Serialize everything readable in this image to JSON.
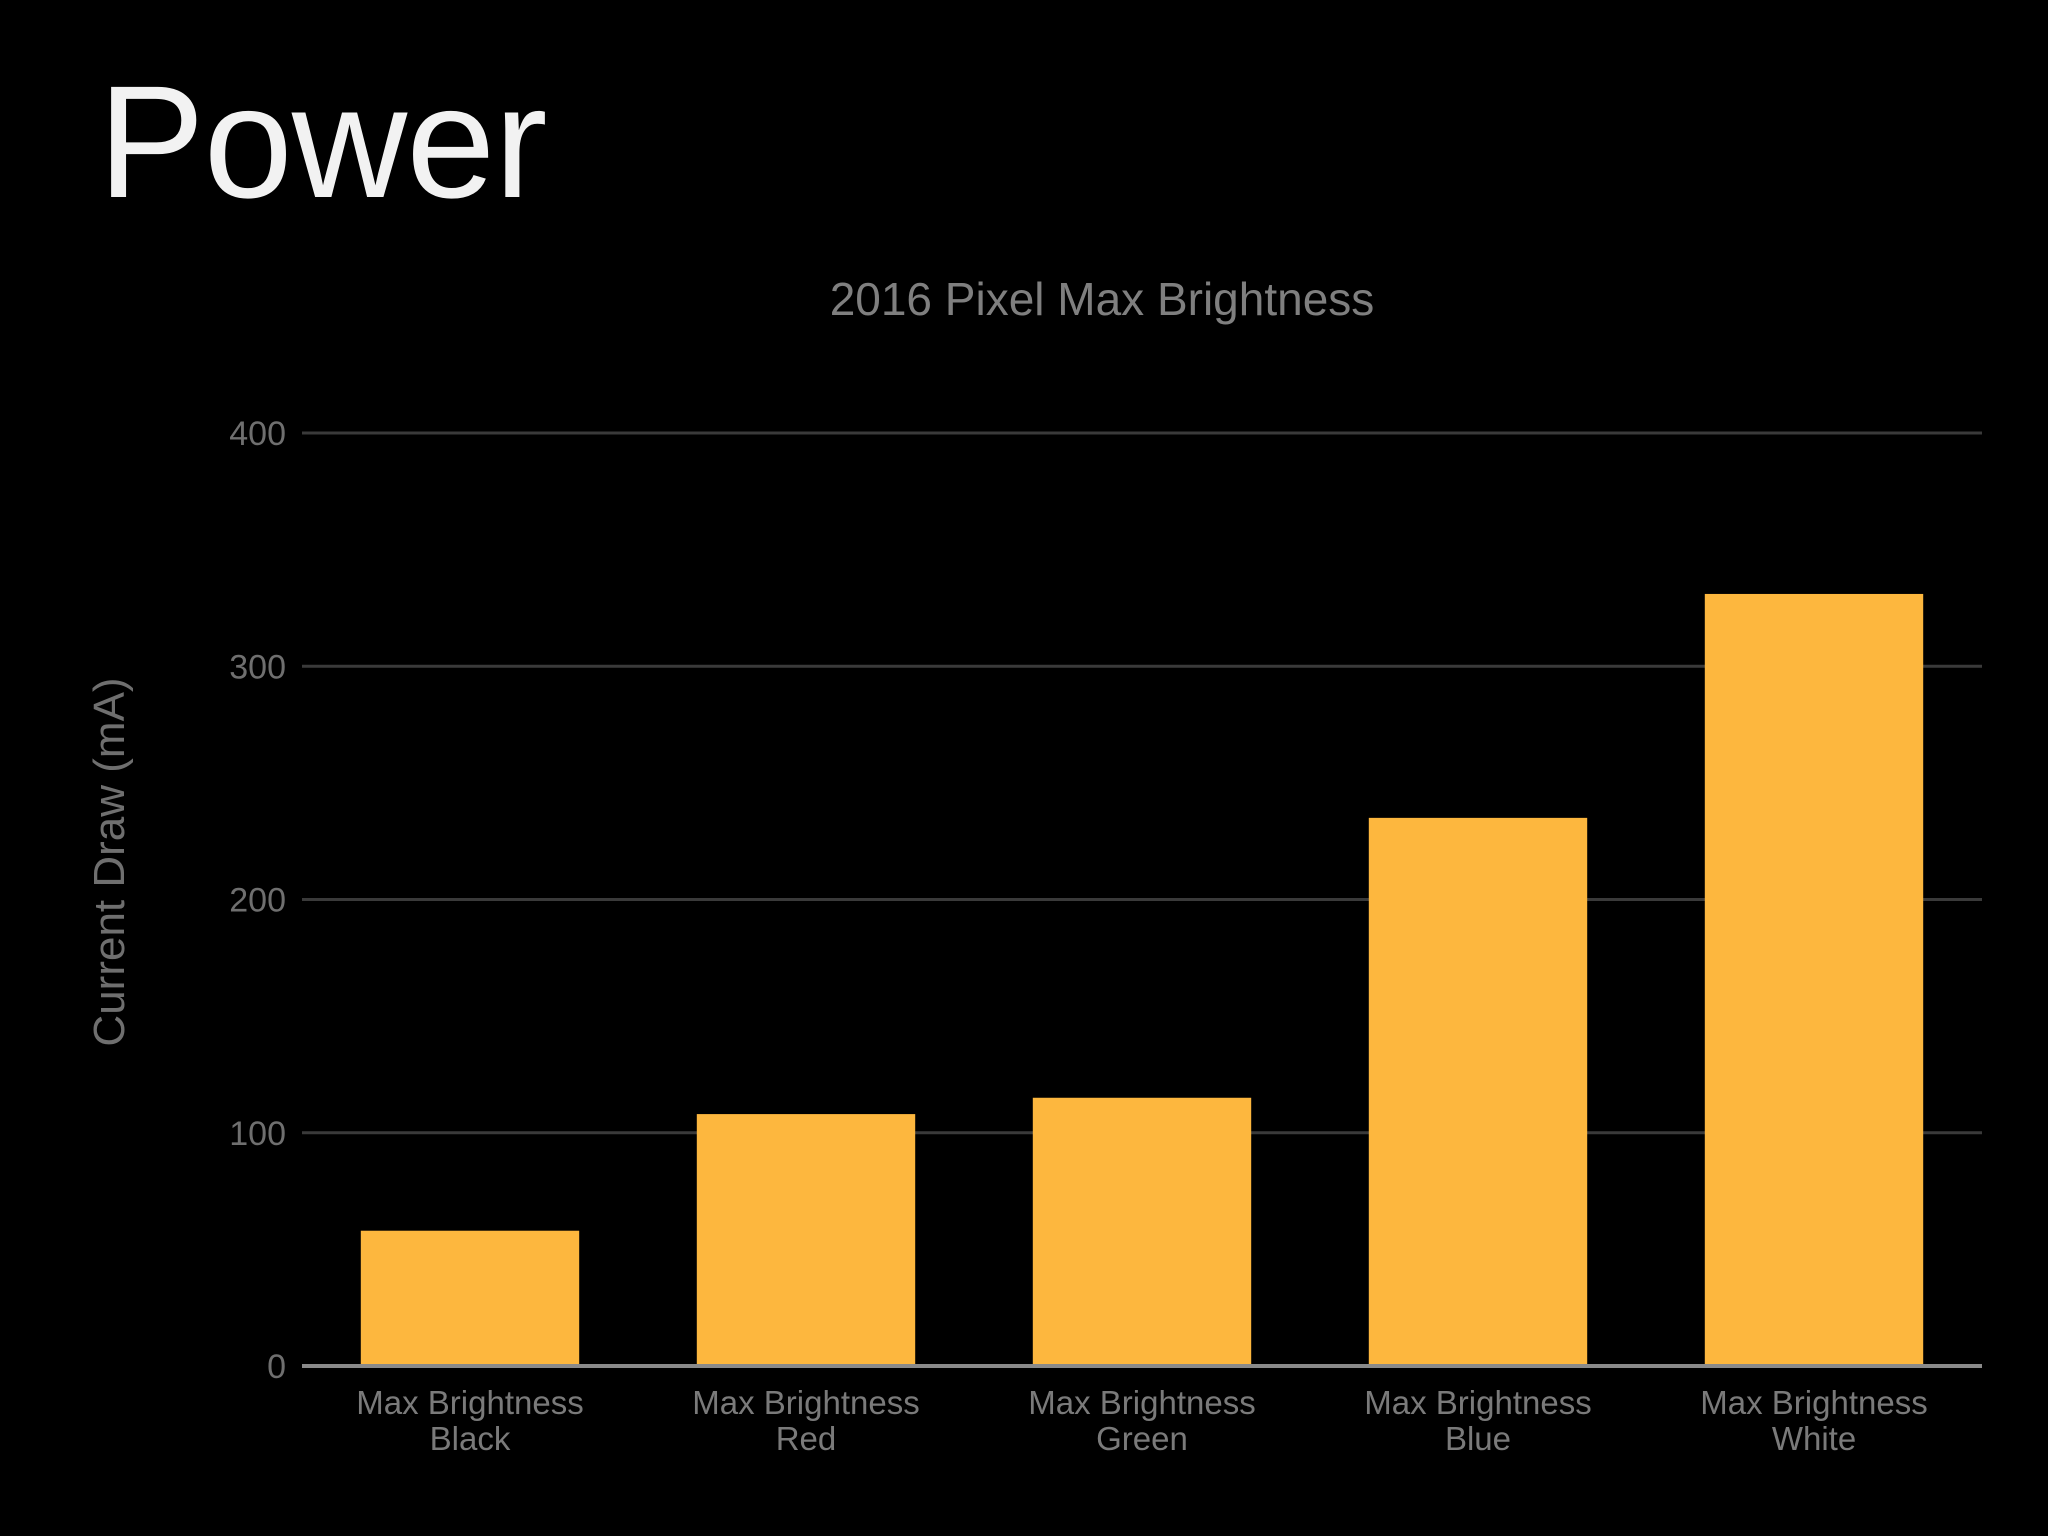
{
  "slide": {
    "title": "Power"
  },
  "colors": {
    "background": "#000000",
    "bar": "#FDB73E",
    "title_text": "#F2F2F2",
    "chart_text": "#7A7A7A",
    "gridline": "#3A3A3A"
  },
  "chart_data": {
    "type": "bar",
    "title": "2016 Pixel Max Brightness",
    "xlabel": "",
    "ylabel": "Current Draw (mA)",
    "ylim": [
      0,
      400
    ],
    "yticks": [
      "0",
      "100",
      "200",
      "300",
      "400"
    ],
    "grid": true,
    "categories": [
      [
        "Max Brightness",
        "Black"
      ],
      [
        "Max Brightness",
        "Red"
      ],
      [
        "Max Brightness",
        "Green"
      ],
      [
        "Max Brightness",
        "Blue"
      ],
      [
        "Max Brightness",
        "White"
      ]
    ],
    "values": [
      58,
      108,
      115,
      235,
      331
    ]
  }
}
